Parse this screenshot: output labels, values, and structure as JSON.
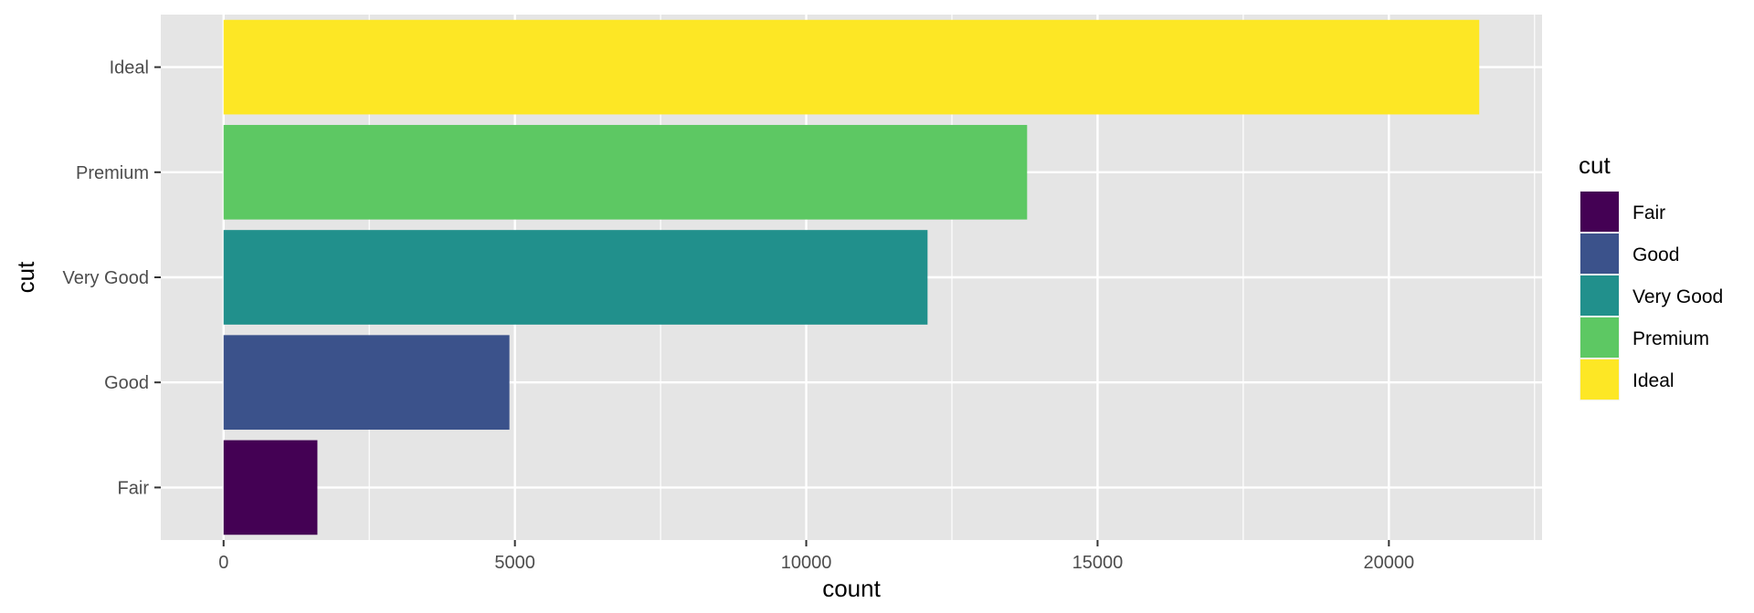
{
  "chart_data": {
    "type": "bar",
    "orientation": "horizontal",
    "categories": [
      "Fair",
      "Good",
      "Very Good",
      "Premium",
      "Ideal"
    ],
    "values": [
      1610,
      4906,
      12082,
      13791,
      21551
    ],
    "colors": [
      "#440154",
      "#3b528b",
      "#21908c",
      "#5dc863",
      "#fde725"
    ],
    "xlabel": "count",
    "ylabel": "cut",
    "xlim": [
      -1078,
      22629
    ],
    "xticks": [
      0,
      5000,
      10000,
      15000,
      20000
    ],
    "xtick_labels": [
      "0",
      "5000",
      "10000",
      "15000",
      "20000"
    ],
    "grid": true,
    "panel_background": "#e5e5e5",
    "legend": {
      "title": "cut",
      "placement": "right",
      "entries": [
        "Fair",
        "Good",
        "Very Good",
        "Premium",
        "Ideal"
      ]
    }
  }
}
